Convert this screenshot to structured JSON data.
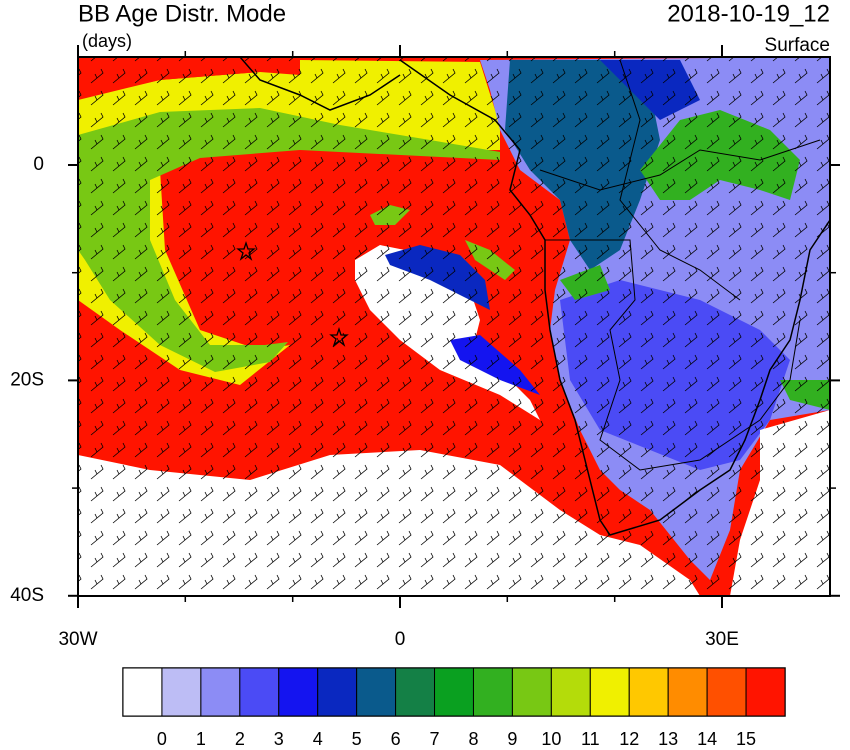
{
  "header": {
    "title": "BB Age Distr. Mode",
    "units": "(days)",
    "date": "2018-10-19_12",
    "level": "Surface"
  },
  "map": {
    "lat_ticks": [
      {
        "value": 0,
        "label": "0"
      },
      {
        "value": -20,
        "label": "20S"
      },
      {
        "value": -40,
        "label": "40S"
      }
    ],
    "lon_ticks": [
      {
        "value": -30,
        "label": "30W"
      },
      {
        "value": 0,
        "label": "0"
      },
      {
        "value": 30,
        "label": "30E"
      }
    ]
  },
  "colorbar": {
    "labels": [
      0,
      1,
      2,
      3,
      4,
      5,
      6,
      7,
      8,
      9,
      10,
      11,
      12,
      13,
      14,
      15
    ],
    "colors": [
      "#ffffff",
      "#bdbdf5",
      "#8c8cf5",
      "#4b4bf5",
      "#1414f0",
      "#0a28c0",
      "#0a5a8c",
      "#148046",
      "#0aa020",
      "#32b020",
      "#78c814",
      "#b4dc0a",
      "#f0f000",
      "#ffc800",
      "#ff8c00",
      "#ff5000",
      "#ff1400"
    ]
  }
}
